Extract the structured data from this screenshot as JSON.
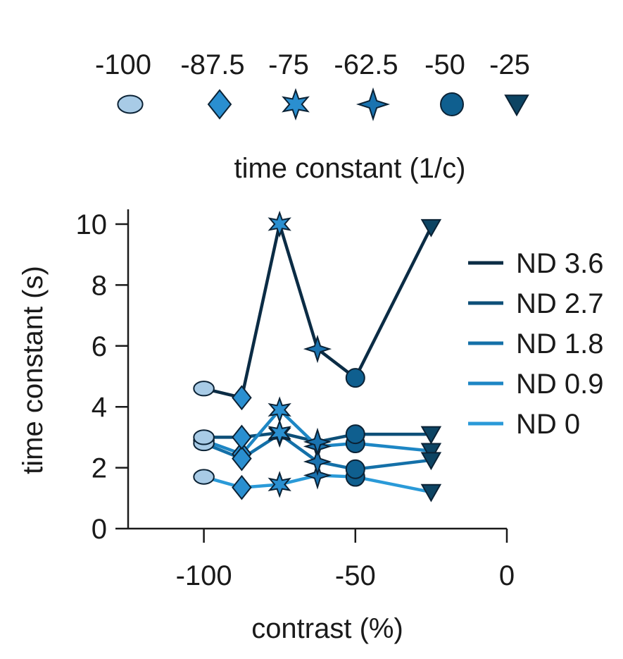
{
  "chart_data": {
    "type": "line",
    "title": "time constant (1/c)",
    "xlabel": "contrast (%)",
    "ylabel": "time constant (s)",
    "xlim": [
      -125,
      0
    ],
    "ylim": [
      0,
      10
    ],
    "xticks": [
      -100,
      -50,
      0
    ],
    "yticks": [
      0,
      2,
      4,
      6,
      8,
      10
    ],
    "grid": false,
    "legend_position": "right",
    "marker_key": [
      {
        "label": "-100",
        "marker": "ellipse",
        "color": "#a8cbe6"
      },
      {
        "label": "-87.5",
        "marker": "diamond",
        "color": "#2a8fd0"
      },
      {
        "label": "-75",
        "marker": "star6",
        "color": "#2a8fd0"
      },
      {
        "label": "-62.5",
        "marker": "star4",
        "color": "#1a73b0"
      },
      {
        "label": "-50",
        "marker": "circle",
        "color": "#0f5f8f"
      },
      {
        "label": "-25",
        "marker": "triangle-down",
        "color": "#0d4463"
      }
    ],
    "x": [
      -100,
      -87.5,
      -75,
      -62.5,
      -50,
      -25
    ],
    "series": [
      {
        "name": "ND 3.6",
        "color": "#0b2c45",
        "values": [
          4.6,
          4.3,
          10.0,
          5.9,
          4.95,
          9.9
        ]
      },
      {
        "name": "ND 2.7",
        "color": "#0d4f78",
        "values": [
          3.0,
          3.0,
          3.15,
          2.85,
          3.1,
          3.1
        ]
      },
      {
        "name": "ND 1.8",
        "color": "#1470a8",
        "values": [
          2.8,
          2.3,
          3.1,
          2.2,
          1.95,
          2.25
        ]
      },
      {
        "name": "ND 0.9",
        "color": "#1d86c4",
        "values": [
          2.9,
          2.45,
          3.9,
          2.7,
          2.8,
          2.55
        ]
      },
      {
        "name": "ND 0",
        "color": "#2a9ad8",
        "values": [
          1.7,
          1.35,
          1.45,
          1.75,
          1.7,
          1.2
        ]
      }
    ]
  }
}
